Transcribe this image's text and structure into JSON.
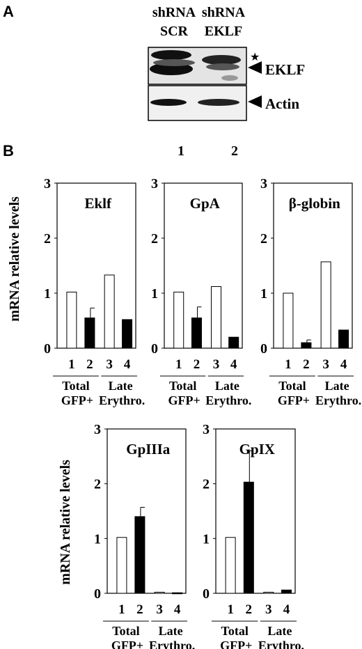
{
  "panel_a": {
    "label": "A",
    "lane_headers": [
      {
        "line1": "shRNA",
        "line2": "SCR"
      },
      {
        "line1": "shRNA",
        "line2": "EKLF"
      }
    ],
    "star": "★",
    "eklf_label": "EKLF",
    "actin_label": "Actin",
    "lane_numbers": [
      "1",
      "2"
    ]
  },
  "panel_b": {
    "label": "B",
    "y_axis_label": "mRNA relative levels",
    "group_labels": [
      {
        "line1": "Total",
        "line2": "GFP+"
      },
      {
        "line1": "Late",
        "line2": "Erythro."
      }
    ]
  },
  "colors": {
    "bar_open": "#ffffff",
    "bar_filled": "#000000",
    "blot_bg": "#e6e6e6"
  },
  "chart_data": [
    {
      "type": "bar",
      "title": "Eklf",
      "categories": [
        "1",
        "2",
        "3",
        "4"
      ],
      "values": [
        1.02,
        0.55,
        1.33,
        0.52
      ],
      "errors": [
        0,
        0.18,
        0,
        0
      ],
      "ylim": [
        0,
        3
      ],
      "yticks": [
        0,
        1,
        2,
        3
      ],
      "fills": [
        "open",
        "filled",
        "open",
        "filled"
      ]
    },
    {
      "type": "bar",
      "title": "GpA",
      "categories": [
        "1",
        "2",
        "3",
        "4"
      ],
      "values": [
        1.02,
        0.55,
        1.12,
        0.2
      ],
      "errors": [
        0,
        0.2,
        0,
        0
      ],
      "ylim": [
        0,
        3
      ],
      "yticks": [
        0,
        1,
        2,
        3
      ],
      "fills": [
        "open",
        "filled",
        "open",
        "filled"
      ]
    },
    {
      "type": "bar",
      "title": "β-globin",
      "categories": [
        "1",
        "2",
        "3",
        "4"
      ],
      "values": [
        1.0,
        0.1,
        1.57,
        0.33
      ],
      "errors": [
        0,
        0.05,
        0,
        0
      ],
      "ylim": [
        0,
        3
      ],
      "yticks": [
        0,
        1,
        2,
        3
      ],
      "fills": [
        "open",
        "filled",
        "open",
        "filled"
      ]
    },
    {
      "type": "bar",
      "title": "GpIIIa",
      "categories": [
        "1",
        "2",
        "3",
        "4"
      ],
      "values": [
        1.02,
        1.4,
        0.02,
        0.01
      ],
      "errors": [
        0,
        0.17,
        0,
        0
      ],
      "ylim": [
        0,
        3
      ],
      "yticks": [
        0,
        1,
        2,
        3
      ],
      "fills": [
        "open",
        "filled",
        "open",
        "filled"
      ]
    },
    {
      "type": "bar",
      "title": "GpIX",
      "categories": [
        "1",
        "2",
        "3",
        "4"
      ],
      "values": [
        1.02,
        2.03,
        0.02,
        0.06
      ],
      "errors": [
        0,
        0.57,
        0,
        0
      ],
      "ylim": [
        0,
        3
      ],
      "yticks": [
        0,
        1,
        2,
        3
      ],
      "fills": [
        "open",
        "filled",
        "open",
        "filled"
      ]
    }
  ]
}
